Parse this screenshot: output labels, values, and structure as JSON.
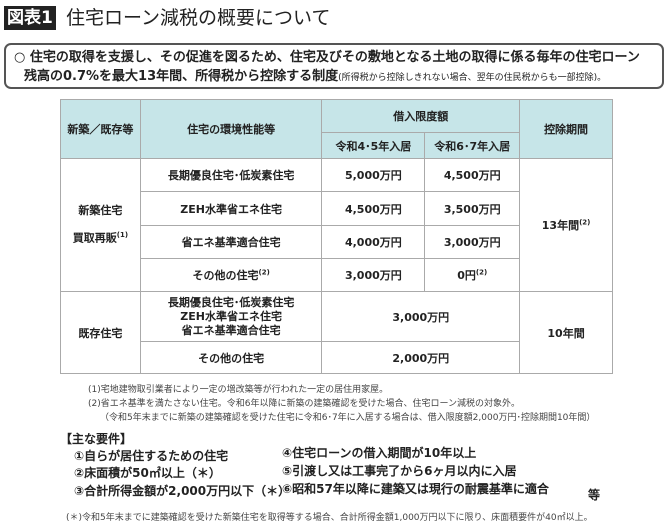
{
  "header": {
    "badge": "図表1",
    "title": "住宅ローン減税の概要について"
  },
  "summary": {
    "line1": "○  住宅の取得を支援し、その促進を図るため、住宅及びその敷地となる土地の取得に係る毎年の住宅ローン",
    "line2": "残高の0.7%を最大13年間、所得税から控除する制度",
    "line2_small": "(所得税から控除しきれない場合、翌年の住民税からも一部控除)。"
  },
  "table": {
    "headers": {
      "type": "新築／既存等",
      "performance": "住宅の環境性能等",
      "limit": "借入限度額",
      "r45": "令和4･5年入居",
      "r67": "令和6･7年入居",
      "period": "控除期間"
    },
    "new": {
      "label1": "新築住宅",
      "label2": "買取再販",
      "label2_sup": "(1)",
      "period": "13年間",
      "period_sup": "(2)",
      "rows": [
        {
          "perf": "長期優良住宅･低炭素住宅",
          "perf_sup": "",
          "r45": "5,000万円",
          "r67": "4,500万円",
          "r67_sup": ""
        },
        {
          "perf": "ZEH水準省エネ住宅",
          "perf_sup": "",
          "r45": "4,500万円",
          "r67": "3,500万円",
          "r67_sup": ""
        },
        {
          "perf": "省エネ基準適合住宅",
          "perf_sup": "",
          "r45": "4,000万円",
          "r67": "3,000万円",
          "r67_sup": ""
        },
        {
          "perf": "その他の住宅",
          "perf_sup": "(2)",
          "r45": "3,000万円",
          "r67": "0円",
          "r67_sup": "(2)"
        }
      ]
    },
    "existing": {
      "label": "既存住宅",
      "period": "10年間",
      "row1": {
        "perf1": "長期優良住宅･低炭素住宅",
        "perf2": "ZEH水準省エネ住宅",
        "perf3": "省エネ基準適合住宅",
        "value": "3,000万円"
      },
      "row2": {
        "perf": "その他の住宅",
        "value": "2,000万円"
      }
    }
  },
  "notes": [
    "(1)宅地建物取引業者により一定の増改築等が行われた一定の居住用家屋。",
    "(2)省エネ基準を満たさない住宅。令和6年以降に新築の建築確認を受けた場合、住宅ローン減税の対象外。",
    "（令和5年末までに新築の建築確認を受けた住宅に令和6･7年に入居する場合は、借入限度額2,000万円･控除期間10年間）"
  ],
  "requirements": {
    "heading": "【主な要件】",
    "items": [
      "①自らが居住するための住宅",
      "②床面積が50㎡以上（＊）",
      "③合計所得金額が2,000万円以下（＊）",
      "④住宅ローンの借入期間が10年以上",
      "⑤引渡し又は工事完了から6ヶ月以内に入居",
      "⑥昭和57年以降に建築又は現行の耐震基準に適合"
    ],
    "etc": "等"
  },
  "footnote": "(＊)令和5年末までに建築確認を受けた新築住宅を取得等する場合、合計所得金額1,000万円以下に限り、床面積要件が40㎡以上。"
}
